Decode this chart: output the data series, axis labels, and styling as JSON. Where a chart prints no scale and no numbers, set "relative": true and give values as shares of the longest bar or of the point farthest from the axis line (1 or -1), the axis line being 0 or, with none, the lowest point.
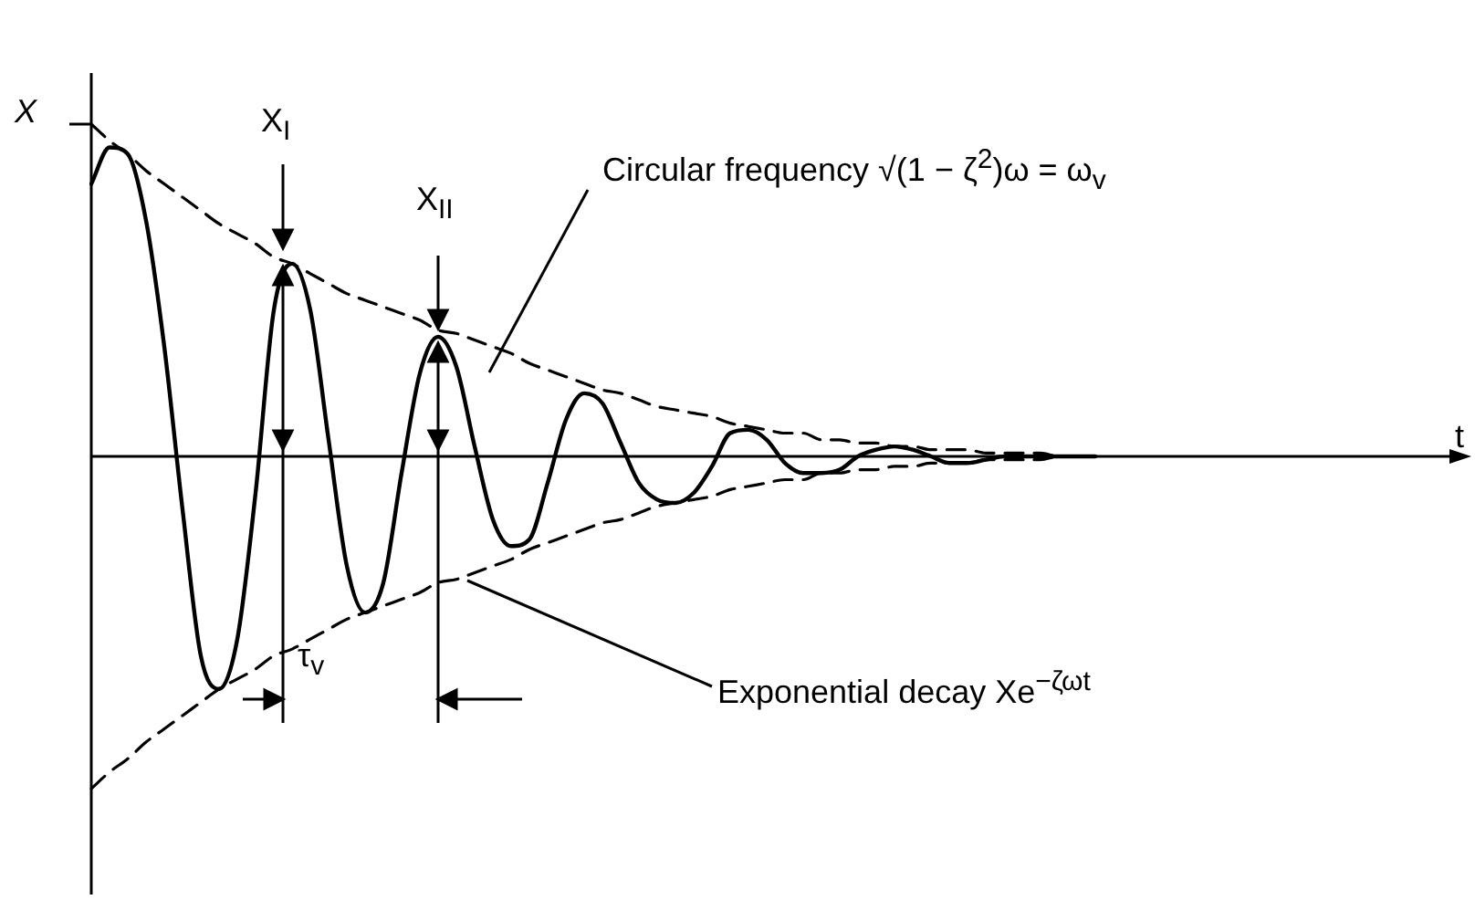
{
  "chart_data": {
    "type": "line",
    "relative": true,
    "ylabel": "X",
    "legend": false,
    "grid": false,
    "tick_labels": false,
    "marker": "none",
    "categories": [
      null,
      null,
      null,
      null,
      null,
      null,
      null,
      null,
      null,
      null,
      null,
      null,
      null,
      null,
      null,
      null,
      null,
      null,
      null,
      null,
      null,
      null,
      null,
      null,
      null,
      null,
      null,
      null,
      null,
      null,
      null,
      null,
      null,
      null,
      null,
      null,
      null,
      null,
      null,
      null,
      null,
      null,
      null,
      null,
      null,
      null,
      null,
      null,
      null,
      null,
      null,
      null,
      null,
      null,
      null,
      null
    ],
    "series": [
      {
        "color": "#000000",
        "line_style": "solid",
        "values": [
          0.82,
          0.93,
          0.91,
          0.71,
          0.33,
          -0.16,
          -0.6,
          -0.7,
          -0.55,
          -0.11,
          0.44,
          0.58,
          0.44,
          0.05,
          -0.33,
          -0.47,
          -0.38,
          -0.05,
          0.25,
          0.36,
          0.27,
          0.03,
          -0.19,
          -0.27,
          -0.25,
          -0.08,
          0.11,
          0.19,
          0.16,
          0.04,
          -0.08,
          -0.13,
          -0.14,
          -0.11,
          -0.03,
          0.07,
          0.08,
          0.05,
          -0.02,
          -0.05,
          -0.05,
          -0.04,
          0,
          0.02,
          0.03,
          0.02,
          0,
          -0.02,
          -0.02,
          -0.01,
          0,
          0,
          0,
          0,
          0,
          0
        ]
      },
      {
        "color": "#000000",
        "line_style": "dashed",
        "values": [
          1,
          0.95,
          0.91,
          0.86,
          0.82,
          0.78,
          0.74,
          0.7,
          0.67,
          0.64,
          0.6,
          0.58,
          0.55,
          0.52,
          0.49,
          0.47,
          0.45,
          0.43,
          0.41,
          0.38,
          0.37,
          0.35,
          0.33,
          0.31,
          0.28,
          0.26,
          0.24,
          0.22,
          0.2,
          0.19,
          0.17,
          0.15,
          0.14,
          0.13,
          0.12,
          0.1,
          0.09,
          0.08,
          0.07,
          0.07,
          0.05,
          0.05,
          0.04,
          0.04,
          0.03,
          0.03,
          0.02,
          0.02,
          0.02,
          0.01,
          0.01,
          0.01,
          0.01,
          0,
          0,
          0
        ]
      },
      {
        "color": "#000000",
        "line_style": "dashed",
        "values": [
          -1,
          -0.95,
          -0.91,
          -0.86,
          -0.82,
          -0.78,
          -0.74,
          -0.7,
          -0.67,
          -0.64,
          -0.6,
          -0.58,
          -0.55,
          -0.52,
          -0.49,
          -0.47,
          -0.45,
          -0.43,
          -0.41,
          -0.38,
          -0.37,
          -0.35,
          -0.33,
          -0.31,
          -0.28,
          -0.26,
          -0.24,
          -0.22,
          -0.2,
          -0.19,
          -0.17,
          -0.15,
          -0.14,
          -0.13,
          -0.12,
          -0.1,
          -0.09,
          -0.08,
          -0.07,
          -0.07,
          -0.05,
          -0.05,
          -0.04,
          -0.04,
          -0.03,
          -0.03,
          -0.02,
          -0.02,
          -0.02,
          -0.01,
          -0.01,
          -0.01,
          -0.01,
          0,
          0,
          0
        ]
      }
    ],
    "annotations": [
      "X$_{I}$",
      "X$_{II}$",
      "Circular frequency √(1 − ζ$^{2}$)ω = ω$_{v}$",
      "τ$_{v}$",
      "Exponential decay Xe$^{−ζωt}$",
      "t"
    ]
  }
}
